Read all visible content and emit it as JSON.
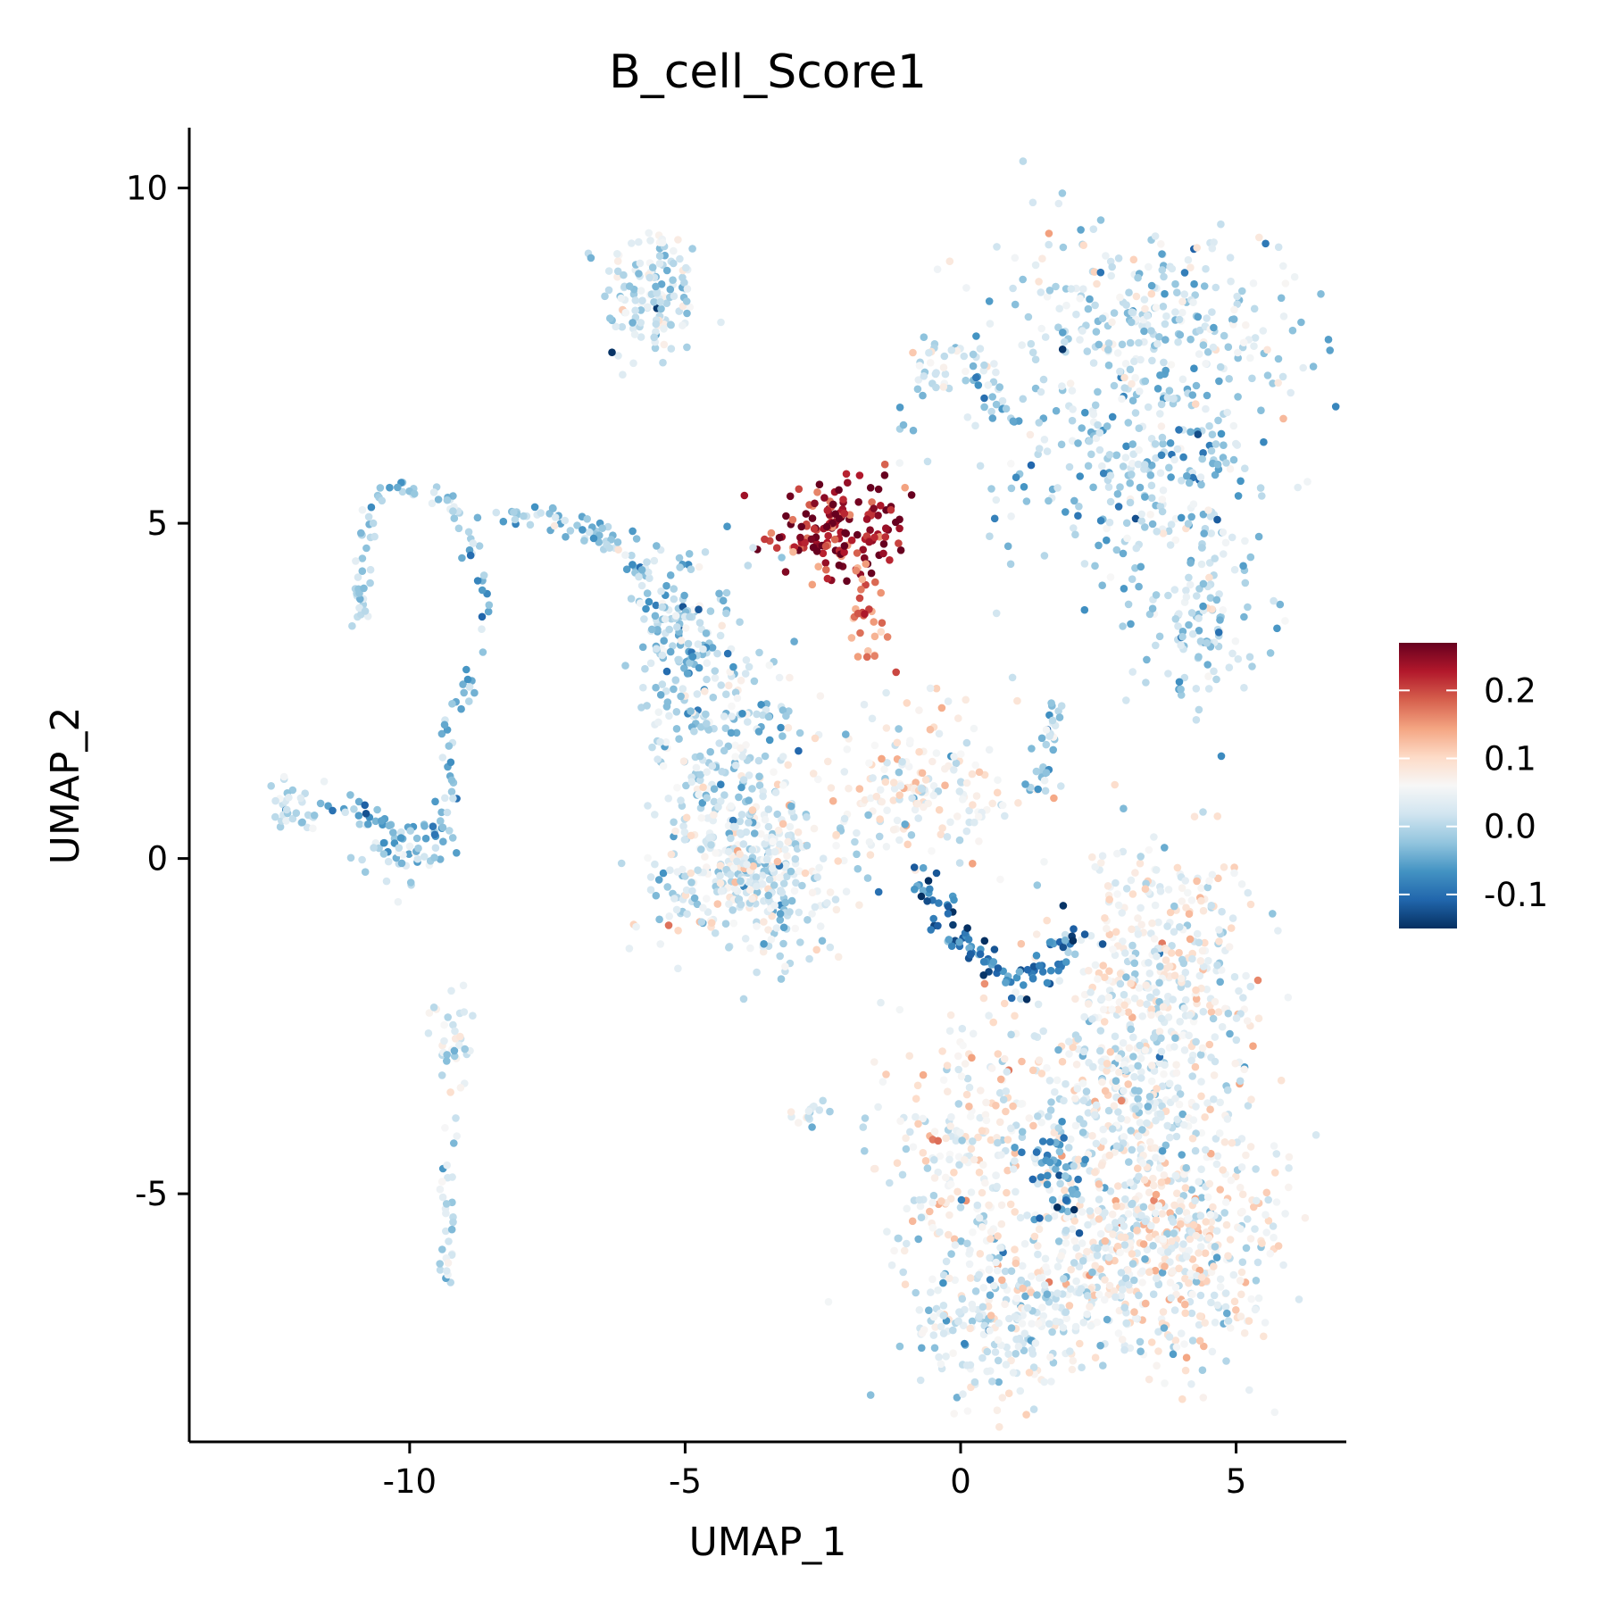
{
  "chart_data": {
    "type": "scatter",
    "title": "B_cell_Score1",
    "xlabel": "UMAP_1",
    "ylabel": "UMAP_2",
    "xlim": [
      -14,
      7
    ],
    "ylim": [
      -8.7,
      10.9
    ],
    "xticks": [
      -10,
      -5,
      0,
      5
    ],
    "yticks": [
      -5,
      0,
      5,
      10
    ],
    "xtick_labels": [
      "-10",
      "-5",
      "0",
      "5"
    ],
    "ytick_labels": [
      "-5",
      "0",
      "5",
      "10"
    ],
    "grid": false,
    "legend": {
      "placement": "right",
      "type": "colorbar",
      "range": [
        -0.15,
        0.27
      ],
      "ticks": [
        0.2,
        0.1,
        0.0,
        -0.1
      ],
      "tick_labels": [
        "0.2",
        "0.1",
        "0.0",
        "-0.1"
      ],
      "colormap": [
        "#053061",
        "#2166ac",
        "#4393c3",
        "#92c5de",
        "#d1e5f0",
        "#f7f7f7",
        "#fddbc7",
        "#f4a582",
        "#d6604d",
        "#b2182b",
        "#67001f"
      ]
    },
    "point_color_variable": "B_cell_Score1",
    "clusters": [
      {
        "center": [
          -5.6,
          8.4
        ],
        "spread": [
          0.45,
          0.55
        ],
        "n": 140,
        "score": 0.02
      },
      {
        "center": [
          -2.2,
          4.9
        ],
        "spread": [
          0.6,
          0.35
        ],
        "n": 160,
        "score": 0.23
      },
      {
        "center": [
          -1.7,
          3.5
        ],
        "spread": [
          0.25,
          0.45
        ],
        "n": 30,
        "score": 0.17
      },
      {
        "center": [
          3.4,
          8.0
        ],
        "spread": [
          1.5,
          0.8
        ],
        "n": 300,
        "score": 0.01
      },
      {
        "center": [
          3.3,
          5.8
        ],
        "spread": [
          1.3,
          0.9
        ],
        "n": 260,
        "score": 0.0
      },
      {
        "center": [
          4.3,
          3.6
        ],
        "spread": [
          0.6,
          0.7
        ],
        "n": 120,
        "score": 0.0
      },
      {
        "center": [
          -0.4,
          7.4
        ],
        "spread": [
          0.35,
          0.25
        ],
        "n": 30,
        "score": 0.02
      },
      {
        "center": [
          -4.3,
          1.5
        ],
        "spread": [
          0.7,
          1.2
        ],
        "n": 320,
        "score": 0.01
      },
      {
        "center": [
          -3.6,
          -0.3
        ],
        "spread": [
          0.9,
          0.6
        ],
        "n": 300,
        "score": 0.03
      },
      {
        "center": [
          -5.2,
          3.4
        ],
        "spread": [
          0.4,
          0.6
        ],
        "n": 90,
        "score": -0.02
      },
      {
        "center": [
          -0.7,
          1.0
        ],
        "spread": [
          0.9,
          0.6
        ],
        "n": 180,
        "score": 0.06
      },
      {
        "center": [
          3.6,
          -1.6
        ],
        "spread": [
          0.9,
          0.9
        ],
        "n": 350,
        "score": 0.05
      },
      {
        "center": [
          3.2,
          -3.5
        ],
        "spread": [
          1.0,
          0.8
        ],
        "n": 300,
        "score": 0.03
      },
      {
        "center": [
          3.6,
          -5.8
        ],
        "spread": [
          1.1,
          0.9
        ],
        "n": 550,
        "score": 0.06
      },
      {
        "center": [
          0.8,
          -6.8
        ],
        "spread": [
          1.0,
          0.6
        ],
        "n": 260,
        "score": 0.03
      },
      {
        "center": [
          0.2,
          -4.4
        ],
        "spread": [
          0.8,
          1.0
        ],
        "n": 250,
        "score": 0.06
      },
      {
        "center": [
          1.7,
          -4.7
        ],
        "spread": [
          0.3,
          0.5
        ],
        "n": 50,
        "score": -0.06
      },
      {
        "center": [
          -10.1,
          0.1
        ],
        "spread": [
          0.35,
          0.3
        ],
        "n": 40,
        "score": 0.0
      },
      {
        "center": [
          -12.2,
          0.8
        ],
        "spread": [
          0.3,
          0.2
        ],
        "n": 30,
        "score": 0.02
      },
      {
        "center": [
          -9.2,
          -2.7
        ],
        "spread": [
          0.2,
          0.4
        ],
        "n": 35,
        "score": 0.02
      },
      {
        "center": [
          -2.7,
          -3.8
        ],
        "spread": [
          0.2,
          0.15
        ],
        "n": 15,
        "score": 0.02
      }
    ],
    "paths": [
      {
        "points": [
          [
            -9.0,
            5.0
          ],
          [
            -9.3,
            5.4
          ],
          [
            -10.0,
            5.5
          ],
          [
            -10.6,
            5.5
          ],
          [
            -10.8,
            5.0
          ],
          [
            -10.8,
            4.6
          ],
          [
            -10.9,
            4.0
          ],
          [
            -10.9,
            3.6
          ]
        ],
        "n": 60,
        "jitter": 0.08,
        "score": 0.0
      },
      {
        "points": [
          [
            -9.0,
            5.0
          ],
          [
            -8.7,
            4.2
          ],
          [
            -8.6,
            3.5
          ],
          [
            -8.9,
            2.6
          ],
          [
            -9.3,
            2.0
          ],
          [
            -9.3,
            1.0
          ],
          [
            -9.4,
            0.6
          ]
        ],
        "n": 50,
        "jitter": 0.09,
        "score": -0.03
      },
      {
        "points": [
          [
            -12.0,
            0.7
          ],
          [
            -11.0,
            0.8
          ],
          [
            -10.5,
            0.5
          ],
          [
            -10.0,
            0.2
          ],
          [
            -9.5,
            0.5
          ],
          [
            -9.2,
            0.3
          ]
        ],
        "n": 45,
        "jitter": 0.1,
        "score": -0.04
      },
      {
        "points": [
          [
            -8.3,
            5.1
          ],
          [
            -7.3,
            5.1
          ],
          [
            -6.6,
            4.9
          ],
          [
            -6.0,
            4.5
          ],
          [
            -5.5,
            3.9
          ],
          [
            -5.0,
            3.3
          ],
          [
            -4.6,
            2.7
          ]
        ],
        "n": 90,
        "jitter": 0.13,
        "score": -0.01
      },
      {
        "points": [
          [
            -0.8,
            -0.2
          ],
          [
            -0.3,
            -1.0
          ],
          [
            0.3,
            -1.5
          ],
          [
            1.0,
            -1.8
          ],
          [
            1.7,
            -1.4
          ],
          [
            2.2,
            -1.2
          ]
        ],
        "n": 100,
        "jitter": 0.16,
        "score": -0.09
      },
      {
        "points": [
          [
            1.4,
            0.9
          ],
          [
            1.5,
            1.4
          ],
          [
            1.7,
            2.0
          ],
          [
            1.8,
            2.4
          ]
        ],
        "n": 35,
        "jitter": 0.12,
        "score": -0.01
      },
      {
        "points": [
          [
            -9.3,
            -4.0
          ],
          [
            -9.3,
            -5.0
          ],
          [
            -9.3,
            -5.9
          ],
          [
            -9.3,
            -6.3
          ]
        ],
        "n": 30,
        "jitter": 0.06,
        "score": 0.01
      },
      {
        "points": [
          [
            -1.2,
            6.5
          ],
          [
            -0.8,
            6.0
          ]
        ],
        "n": 6,
        "jitter": 0.2,
        "score": 0.0
      },
      {
        "points": [
          [
            0.2,
            7.3
          ],
          [
            0.6,
            6.9
          ],
          [
            1.0,
            6.6
          ]
        ],
        "n": 20,
        "jitter": 0.14,
        "score": -0.02
      }
    ]
  }
}
